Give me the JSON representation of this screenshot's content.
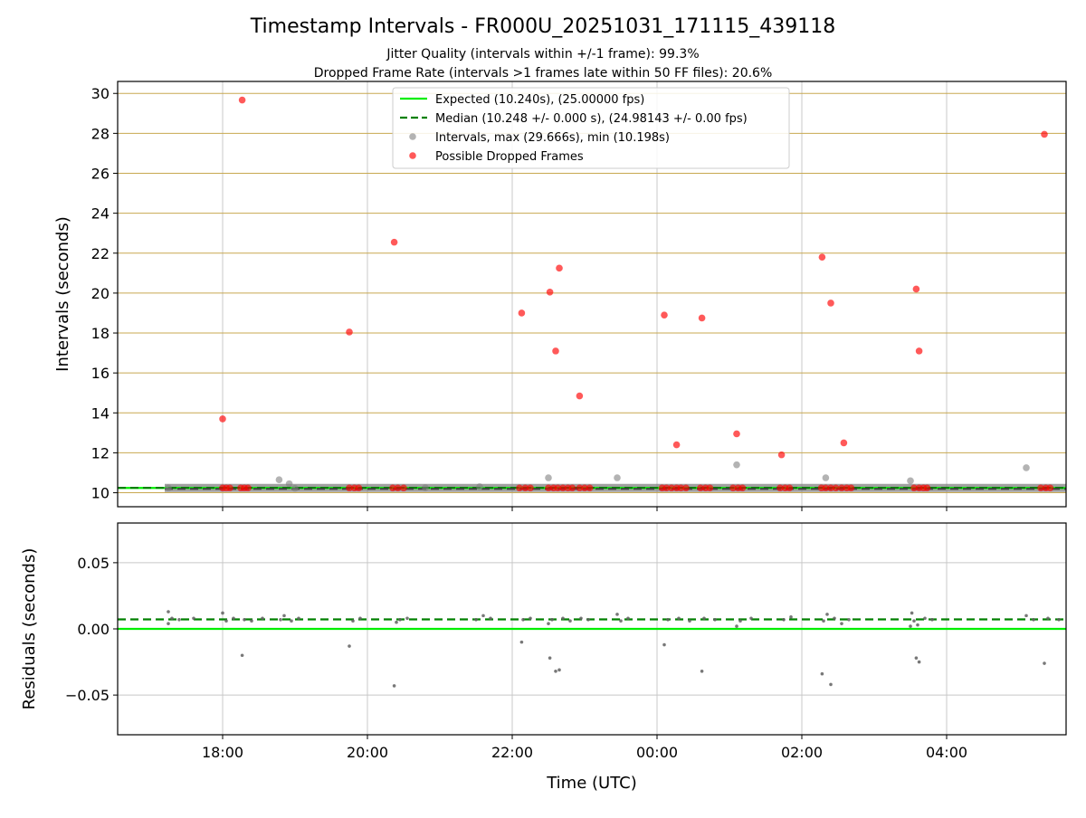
{
  "figure": {
    "title": "Timestamp Intervals - FR000U_20251031_171115_439118",
    "subtitle_1": "Jitter Quality (intervals within +/-1 frame): 99.3%",
    "subtitle_2": "Dropped Frame Rate (intervals >1 frames late within 50 FF files): 20.6%"
  },
  "colors": {
    "expected": "#00ee00",
    "median": "#008000",
    "intervals": "#808080",
    "dropped": "#ff0000",
    "hgrid_top": "#c8a850",
    "grid": "#c8c8c8"
  },
  "chart_data": [
    {
      "type": "scatter",
      "panel": "top",
      "ylabel": "Intervals (seconds)",
      "xlim_hours": [
        16.55,
        29.65
      ],
      "ylim": [
        9.3,
        30.6
      ],
      "yticks": [
        10,
        12,
        14,
        16,
        18,
        20,
        22,
        24,
        26,
        28,
        30
      ],
      "ytick_labels": [
        "10",
        "12",
        "14",
        "16",
        "18",
        "20",
        "22",
        "24",
        "26",
        "28",
        "30"
      ],
      "grid": true,
      "legend_placement": "upper-center",
      "legend": [
        "Expected (10.240s), (25.00000 fps)",
        "Median (10.248 +/- 0.000 s), (24.98143 +/- 0.00 fps)",
        "Intervals, max (29.666s), min (10.198s)",
        "Possible Dropped Frames"
      ],
      "expected_value": 10.24,
      "median_value": 10.248,
      "baseline_range_hours": [
        17.2,
        29.65
      ],
      "baseline_value": 10.24,
      "series": [
        {
          "name": "Intervals, max (29.666s), min (10.198s)",
          "points": [
            {
              "x": 18.78,
              "y": 10.65
            },
            {
              "x": 18.92,
              "y": 10.45
            },
            {
              "x": 21.55,
              "y": 10.3
            },
            {
              "x": 22.5,
              "y": 10.75
            },
            {
              "x": 23.45,
              "y": 10.75
            },
            {
              "x": 25.1,
              "y": 11.4
            },
            {
              "x": 26.33,
              "y": 10.75
            },
            {
              "x": 27.5,
              "y": 10.6
            },
            {
              "x": 29.1,
              "y": 11.25
            },
            {
              "x": 17.25,
              "y": 10.24
            },
            {
              "x": 19.0,
              "y": 10.22
            },
            {
              "x": 20.8,
              "y": 10.25
            }
          ]
        },
        {
          "name": "Possible Dropped Frames",
          "points": [
            {
              "x": 18.0,
              "y": 13.7
            },
            {
              "x": 18.27,
              "y": 29.67
            },
            {
              "x": 19.75,
              "y": 18.05
            },
            {
              "x": 20.37,
              "y": 22.55
            },
            {
              "x": 22.13,
              "y": 19.0
            },
            {
              "x": 22.52,
              "y": 20.05
            },
            {
              "x": 22.6,
              "y": 17.1
            },
            {
              "x": 22.65,
              "y": 21.25
            },
            {
              "x": 22.93,
              "y": 14.85
            },
            {
              "x": 24.1,
              "y": 18.9
            },
            {
              "x": 24.27,
              "y": 12.4
            },
            {
              "x": 24.62,
              "y": 18.75
            },
            {
              "x": 25.1,
              "y": 12.95
            },
            {
              "x": 25.72,
              "y": 11.9
            },
            {
              "x": 26.28,
              "y": 21.8
            },
            {
              "x": 26.4,
              "y": 19.5
            },
            {
              "x": 26.58,
              "y": 12.5
            },
            {
              "x": 27.58,
              "y": 20.2
            },
            {
              "x": 27.62,
              "y": 17.1
            },
            {
              "x": 29.35,
              "y": 27.95
            },
            {
              "x": 18.0,
              "y": 10.24
            },
            {
              "x": 18.05,
              "y": 10.24
            },
            {
              "x": 18.1,
              "y": 10.24
            },
            {
              "x": 18.25,
              "y": 10.24
            },
            {
              "x": 18.3,
              "y": 10.24
            },
            {
              "x": 18.35,
              "y": 10.24
            },
            {
              "x": 19.75,
              "y": 10.24
            },
            {
              "x": 19.82,
              "y": 10.24
            },
            {
              "x": 19.88,
              "y": 10.24
            },
            {
              "x": 20.35,
              "y": 10.24
            },
            {
              "x": 20.42,
              "y": 10.24
            },
            {
              "x": 20.5,
              "y": 10.24
            },
            {
              "x": 22.1,
              "y": 10.24
            },
            {
              "x": 22.18,
              "y": 10.24
            },
            {
              "x": 22.25,
              "y": 10.24
            },
            {
              "x": 22.5,
              "y": 10.24
            },
            {
              "x": 22.57,
              "y": 10.24
            },
            {
              "x": 22.63,
              "y": 10.24
            },
            {
              "x": 22.7,
              "y": 10.24
            },
            {
              "x": 22.77,
              "y": 10.24
            },
            {
              "x": 22.83,
              "y": 10.24
            },
            {
              "x": 22.93,
              "y": 10.24
            },
            {
              "x": 23.0,
              "y": 10.24
            },
            {
              "x": 23.07,
              "y": 10.24
            },
            {
              "x": 24.07,
              "y": 10.24
            },
            {
              "x": 24.13,
              "y": 10.24
            },
            {
              "x": 24.2,
              "y": 10.24
            },
            {
              "x": 24.27,
              "y": 10.24
            },
            {
              "x": 24.33,
              "y": 10.24
            },
            {
              "x": 24.4,
              "y": 10.24
            },
            {
              "x": 24.6,
              "y": 10.24
            },
            {
              "x": 24.67,
              "y": 10.24
            },
            {
              "x": 24.73,
              "y": 10.24
            },
            {
              "x": 25.05,
              "y": 10.24
            },
            {
              "x": 25.12,
              "y": 10.24
            },
            {
              "x": 25.18,
              "y": 10.24
            },
            {
              "x": 25.7,
              "y": 10.24
            },
            {
              "x": 25.77,
              "y": 10.24
            },
            {
              "x": 25.83,
              "y": 10.24
            },
            {
              "x": 26.27,
              "y": 10.24
            },
            {
              "x": 26.33,
              "y": 10.24
            },
            {
              "x": 26.4,
              "y": 10.24
            },
            {
              "x": 26.47,
              "y": 10.24
            },
            {
              "x": 26.55,
              "y": 10.24
            },
            {
              "x": 26.62,
              "y": 10.24
            },
            {
              "x": 26.68,
              "y": 10.24
            },
            {
              "x": 27.55,
              "y": 10.24
            },
            {
              "x": 27.62,
              "y": 10.24
            },
            {
              "x": 27.68,
              "y": 10.24
            },
            {
              "x": 27.73,
              "y": 10.24
            },
            {
              "x": 29.3,
              "y": 10.24
            },
            {
              "x": 29.37,
              "y": 10.24
            },
            {
              "x": 29.43,
              "y": 10.24
            }
          ]
        }
      ]
    },
    {
      "type": "scatter",
      "panel": "bottom",
      "xlabel": "Time (UTC)",
      "ylabel": "Residuals (seconds)",
      "xlim_hours": [
        16.55,
        29.65
      ],
      "ylim": [
        -0.08,
        0.08
      ],
      "yticks": [
        -0.05,
        0.0,
        0.05
      ],
      "ytick_labels": [
        "−0.05",
        "0.00",
        "0.05"
      ],
      "xticks_hours": [
        18,
        20,
        22,
        24,
        26,
        28
      ],
      "xtick_labels": [
        "18:00",
        "20:00",
        "22:00",
        "00:00",
        "02:00",
        "04:00"
      ],
      "grid": true,
      "expected_value": 0.0,
      "median_value": 0.0072,
      "points": [
        {
          "x": 17.25,
          "y": 0.013
        },
        {
          "x": 17.25,
          "y": 0.004
        },
        {
          "x": 18.0,
          "y": 0.012
        },
        {
          "x": 18.27,
          "y": -0.02
        },
        {
          "x": 19.75,
          "y": -0.013
        },
        {
          "x": 20.37,
          "y": -0.043
        },
        {
          "x": 22.13,
          "y": -0.01
        },
        {
          "x": 22.52,
          "y": -0.022
        },
        {
          "x": 22.6,
          "y": -0.032
        },
        {
          "x": 22.65,
          "y": -0.031
        },
        {
          "x": 24.1,
          "y": -0.012
        },
        {
          "x": 24.62,
          "y": -0.032
        },
        {
          "x": 25.1,
          "y": 0.002
        },
        {
          "x": 26.28,
          "y": -0.034
        },
        {
          "x": 26.4,
          "y": -0.042
        },
        {
          "x": 27.58,
          "y": -0.022
        },
        {
          "x": 27.62,
          "y": -0.025
        },
        {
          "x": 29.35,
          "y": -0.026
        },
        {
          "x": 27.5,
          "y": 0.002
        },
        {
          "x": 27.6,
          "y": 0.003
        },
        {
          "x": 27.52,
          "y": 0.012
        },
        {
          "x": 18.85,
          "y": 0.01
        },
        {
          "x": 21.6,
          "y": 0.01
        },
        {
          "x": 23.45,
          "y": 0.011
        },
        {
          "x": 26.35,
          "y": 0.011
        },
        {
          "x": 29.1,
          "y": 0.01
        },
        {
          "x": 20.4,
          "y": 0.005
        },
        {
          "x": 22.5,
          "y": 0.004
        },
        {
          "x": 26.55,
          "y": 0.004
        },
        {
          "x": 17.3,
          "y": 0.008
        },
        {
          "x": 17.4,
          "y": 0.007
        },
        {
          "x": 17.6,
          "y": 0.008
        },
        {
          "x": 18.05,
          "y": 0.006
        },
        {
          "x": 18.15,
          "y": 0.008
        },
        {
          "x": 18.3,
          "y": 0.007
        },
        {
          "x": 18.4,
          "y": 0.006
        },
        {
          "x": 18.55,
          "y": 0.008
        },
        {
          "x": 18.8,
          "y": 0.007
        },
        {
          "x": 18.95,
          "y": 0.006
        },
        {
          "x": 19.05,
          "y": 0.008
        },
        {
          "x": 19.8,
          "y": 0.006
        },
        {
          "x": 19.9,
          "y": 0.008
        },
        {
          "x": 20.45,
          "y": 0.007
        },
        {
          "x": 20.55,
          "y": 0.008
        },
        {
          "x": 21.5,
          "y": 0.007
        },
        {
          "x": 21.7,
          "y": 0.008
        },
        {
          "x": 22.15,
          "y": 0.007
        },
        {
          "x": 22.25,
          "y": 0.008
        },
        {
          "x": 22.55,
          "y": 0.007
        },
        {
          "x": 22.7,
          "y": 0.008
        },
        {
          "x": 22.8,
          "y": 0.006
        },
        {
          "x": 22.95,
          "y": 0.008
        },
        {
          "x": 23.05,
          "y": 0.007
        },
        {
          "x": 23.5,
          "y": 0.006
        },
        {
          "x": 23.6,
          "y": 0.008
        },
        {
          "x": 24.15,
          "y": 0.007
        },
        {
          "x": 24.3,
          "y": 0.008
        },
        {
          "x": 24.45,
          "y": 0.006
        },
        {
          "x": 24.65,
          "y": 0.008
        },
        {
          "x": 24.8,
          "y": 0.007
        },
        {
          "x": 25.15,
          "y": 0.006
        },
        {
          "x": 25.3,
          "y": 0.008
        },
        {
          "x": 25.75,
          "y": 0.007
        },
        {
          "x": 25.85,
          "y": 0.009
        },
        {
          "x": 26.3,
          "y": 0.006
        },
        {
          "x": 26.45,
          "y": 0.008
        },
        {
          "x": 26.65,
          "y": 0.007
        },
        {
          "x": 27.55,
          "y": 0.006
        },
        {
          "x": 27.7,
          "y": 0.008
        },
        {
          "x": 27.8,
          "y": 0.007
        },
        {
          "x": 29.2,
          "y": 0.007
        },
        {
          "x": 29.4,
          "y": 0.008
        },
        {
          "x": 29.55,
          "y": 0.007
        }
      ]
    }
  ]
}
